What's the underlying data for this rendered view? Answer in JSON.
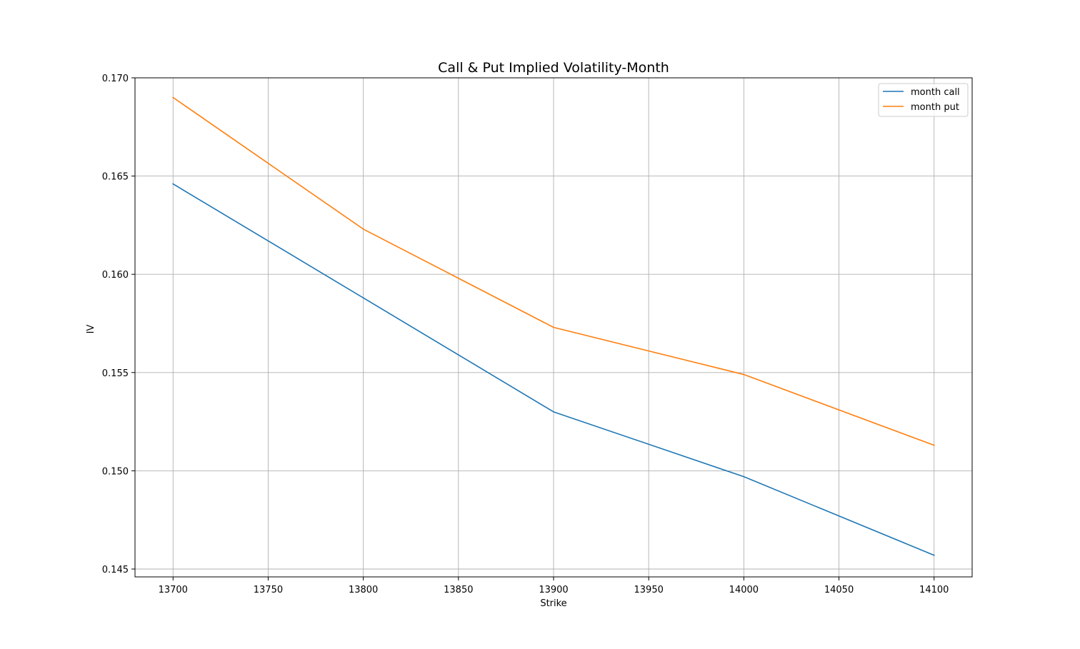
{
  "chart_data": {
    "type": "line",
    "title": "Call & Put Implied Volatility-Month",
    "xlabel": "Strike",
    "ylabel": "IV",
    "x": [
      13700,
      13800,
      13900,
      14000,
      14100
    ],
    "xlim": [
      13680,
      14120
    ],
    "ylim": [
      0.1446,
      0.17
    ],
    "xticks": [
      13700,
      13750,
      13800,
      13850,
      13900,
      13950,
      14000,
      14050,
      14100
    ],
    "xtick_labels": [
      "13700",
      "13750",
      "13800",
      "13850",
      "13900",
      "13950",
      "14000",
      "14050",
      "14100"
    ],
    "yticks": [
      0.145,
      0.15,
      0.155,
      0.16,
      0.165,
      0.17
    ],
    "ytick_labels": [
      "0.145",
      "0.150",
      "0.155",
      "0.160",
      "0.165",
      "0.170"
    ],
    "grid": true,
    "legend_position": "top-right",
    "series": [
      {
        "name": "month call",
        "color": "#1f77b4",
        "values": [
          0.1646,
          0.1588,
          0.153,
          0.1497,
          0.1457
        ]
      },
      {
        "name": "month put",
        "color": "#ff7f0e",
        "values": [
          0.169,
          0.1623,
          0.1573,
          0.1549,
          0.1513
        ]
      }
    ]
  }
}
